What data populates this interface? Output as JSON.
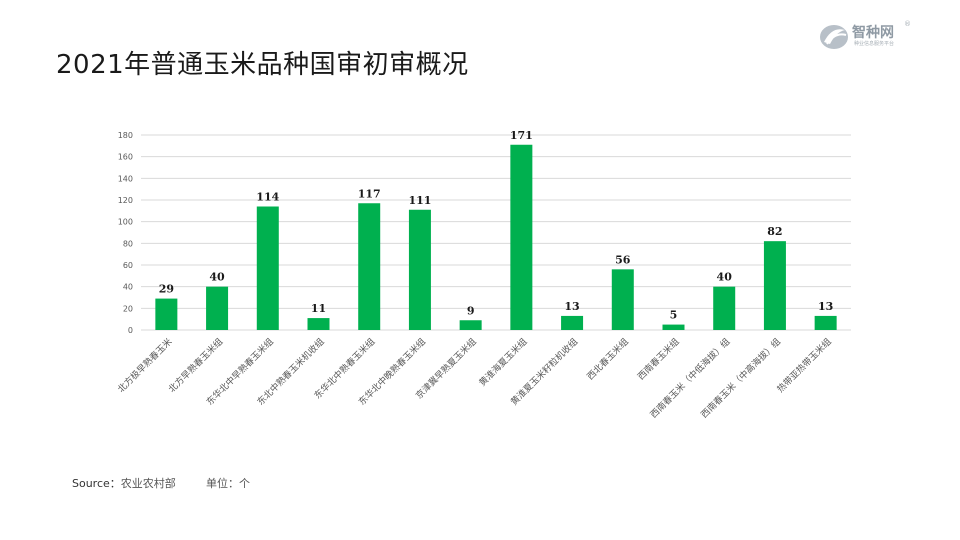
{
  "page": {
    "title": "2021年普通玉米品种国审初审概况",
    "logo_text": "智种网",
    "logo_sub": "种业信息服务平台",
    "logo_mark": "®",
    "source_label": "Source：",
    "source_value": "农业农村部",
    "unit_label": "单位：个"
  },
  "colors": {
    "bar": "#00b04f",
    "grid": "#d9d9d9",
    "axis_text": "#595959",
    "label_text": "#1a1a1a"
  },
  "chart_data": {
    "type": "bar",
    "categories": [
      "北方极早熟春玉米",
      "北方早熟春玉米组",
      "东华北中早熟春玉米组",
      "东北中熟春玉米机收组",
      "东华北中熟春玉米组",
      "东华北中晚熟春玉米组",
      "京津冀早熟夏玉米组",
      "黄淮海夏玉米组",
      "黄淮夏玉米籽粒机收组",
      "西北春玉米组",
      "西南春玉米组",
      "西南春玉米（中低海拔）组",
      "西南春玉米（中高海拔）组",
      "热带亚热带玉米组"
    ],
    "values": [
      29,
      40,
      114,
      11,
      117,
      111,
      9,
      171,
      13,
      56,
      5,
      40,
      82,
      13
    ],
    "ylim": [
      0,
      180
    ],
    "yticks": [
      0,
      20,
      40,
      60,
      80,
      100,
      120,
      140,
      160,
      180
    ],
    "grid": true,
    "data_labels": true
  }
}
